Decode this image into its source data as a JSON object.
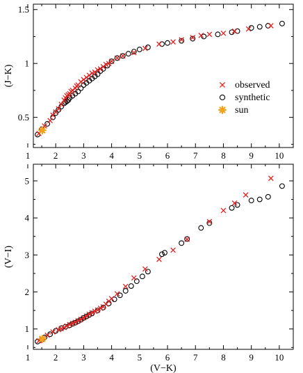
{
  "chart_data": [
    {
      "type": "scatter",
      "xlabel": "",
      "ylabel": "(J−K)",
      "xlim": [
        1.2,
        10.5
      ],
      "ylim": [
        0.22,
        1.55
      ],
      "xticks": [
        "1",
        "2",
        "3",
        "4",
        "5",
        "6",
        "7",
        "8",
        "9",
        "10"
      ],
      "yticks": [
        "0.5",
        "1",
        "1.5"
      ],
      "ytick_values": [
        0.5,
        1.0,
        1.5
      ],
      "legend": {
        "position": "right-middle",
        "entries": [
          "observed",
          "synthetic",
          "sun"
        ]
      },
      "series": [
        {
          "name": "observed",
          "marker": "x",
          "color": "#e0201e",
          "x": [
            1.4,
            1.5,
            1.6,
            1.8,
            1.9,
            2.0,
            2.1,
            2.2,
            2.3,
            2.35,
            2.4,
            2.45,
            2.5,
            2.55,
            2.6,
            2.7,
            2.75,
            2.8,
            2.9,
            3.0,
            3.1,
            3.2,
            3.3,
            3.4,
            3.5,
            3.6,
            3.7,
            3.8,
            3.9,
            4.0,
            4.2,
            4.4,
            4.8,
            5.2,
            5.7,
            6.2,
            6.5,
            6.9,
            7.2,
            7.5,
            8.0,
            8.4,
            8.9,
            9.7
          ],
          "y": [
            0.35,
            0.38,
            0.42,
            0.47,
            0.52,
            0.55,
            0.58,
            0.62,
            0.66,
            0.68,
            0.7,
            0.71,
            0.72,
            0.74,
            0.75,
            0.77,
            0.79,
            0.8,
            0.83,
            0.85,
            0.87,
            0.89,
            0.91,
            0.92,
            0.94,
            0.95,
            0.97,
            0.99,
            1.0,
            1.02,
            1.05,
            1.07,
            1.1,
            1.14,
            1.18,
            1.2,
            1.22,
            1.24,
            1.26,
            1.27,
            1.28,
            1.3,
            1.32,
            1.35
          ]
        },
        {
          "name": "synthetic",
          "marker": "o",
          "color": "#000000",
          "x": [
            1.35,
            1.5,
            1.7,
            1.9,
            2.0,
            2.1,
            2.2,
            2.3,
            2.35,
            2.4,
            2.45,
            2.5,
            2.6,
            2.7,
            2.8,
            2.9,
            3.0,
            3.1,
            3.2,
            3.3,
            3.4,
            3.5,
            3.6,
            3.7,
            3.85,
            4.0,
            4.2,
            4.4,
            4.6,
            4.8,
            5.0,
            5.3,
            5.8,
            6.0,
            6.5,
            6.9,
            7.3,
            7.8,
            8.3,
            8.5,
            9.0,
            9.3,
            9.6,
            10.1
          ],
          "y": [
            0.34,
            0.39,
            0.44,
            0.5,
            0.54,
            0.57,
            0.6,
            0.63,
            0.64,
            0.65,
            0.66,
            0.68,
            0.7,
            0.72,
            0.74,
            0.77,
            0.8,
            0.82,
            0.84,
            0.86,
            0.88,
            0.9,
            0.93,
            0.95,
            0.98,
            1.02,
            1.05,
            1.07,
            1.09,
            1.11,
            1.13,
            1.15,
            1.18,
            1.19,
            1.21,
            1.23,
            1.25,
            1.27,
            1.29,
            1.3,
            1.33,
            1.34,
            1.35,
            1.37
          ]
        },
        {
          "name": "sun",
          "marker": "star",
          "color": "#f2a21c",
          "x": [
            1.52
          ],
          "y": [
            0.38
          ]
        }
      ]
    },
    {
      "type": "scatter",
      "xlabel": "(V−K)",
      "ylabel": "(V−I)",
      "xlim": [
        1.2,
        10.5
      ],
      "ylim": [
        0.45,
        5.45
      ],
      "xticks": [
        "1",
        "2",
        "3",
        "4",
        "5",
        "6",
        "7",
        "8",
        "9",
        "10"
      ],
      "yticks": [
        "1",
        "2",
        "3",
        "4",
        "5"
      ],
      "ytick_values": [
        1,
        2,
        3,
        4,
        5
      ],
      "series": [
        {
          "name": "observed",
          "marker": "x",
          "color": "#e0201e",
          "x": [
            1.4,
            1.5,
            1.7,
            1.9,
            2.1,
            2.2,
            2.3,
            2.4,
            2.5,
            2.6,
            2.7,
            2.8,
            2.9,
            3.0,
            3.1,
            3.2,
            3.3,
            3.4,
            3.5,
            3.6,
            3.7,
            3.8,
            3.9,
            4.0,
            4.2,
            4.5,
            4.8,
            5.2,
            5.7,
            6.2,
            6.7,
            7.5,
            8.0,
            8.4,
            8.8,
            9.7
          ],
          "y": [
            0.68,
            0.73,
            0.83,
            0.92,
            0.98,
            1.01,
            1.04,
            1.08,
            1.12,
            1.15,
            1.18,
            1.22,
            1.26,
            1.3,
            1.35,
            1.4,
            1.44,
            1.48,
            1.51,
            1.56,
            1.6,
            1.67,
            1.75,
            1.82,
            1.95,
            2.15,
            2.38,
            2.62,
            2.88,
            3.13,
            3.42,
            3.9,
            4.2,
            4.4,
            4.62,
            5.07
          ]
        },
        {
          "name": "synthetic",
          "marker": "o",
          "color": "#000000",
          "x": [
            1.35,
            1.5,
            1.6,
            1.8,
            2.0,
            2.2,
            2.35,
            2.5,
            2.6,
            2.7,
            2.8,
            2.9,
            3.0,
            3.1,
            3.2,
            3.3,
            3.5,
            3.7,
            3.9,
            4.1,
            4.3,
            4.5,
            4.7,
            4.9,
            5.1,
            5.3,
            5.8,
            5.9,
            6.5,
            6.7,
            7.2,
            7.5,
            8.3,
            8.5,
            9.0,
            9.3,
            9.6,
            10.1
          ],
          "y": [
            0.66,
            0.71,
            0.77,
            0.86,
            0.95,
            1.02,
            1.06,
            1.1,
            1.14,
            1.17,
            1.21,
            1.25,
            1.3,
            1.34,
            1.38,
            1.42,
            1.5,
            1.58,
            1.69,
            1.8,
            1.91,
            2.03,
            2.16,
            2.29,
            2.42,
            2.55,
            3.02,
            3.06,
            3.32,
            3.43,
            3.73,
            3.86,
            4.27,
            4.35,
            4.47,
            4.5,
            4.57,
            4.86
          ]
        },
        {
          "name": "sun",
          "marker": "star",
          "color": "#f2a21c",
          "x": [
            1.52
          ],
          "y": [
            0.73
          ]
        }
      ]
    }
  ]
}
